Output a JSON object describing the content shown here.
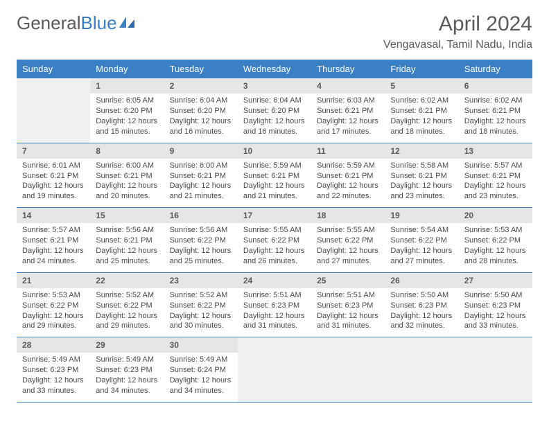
{
  "brand": {
    "part1": "General",
    "part2": "Blue"
  },
  "title": "April 2024",
  "location": "Vengavasal, Tamil Nadu, India",
  "colors": {
    "header_bg": "#3b7fc4",
    "header_fg": "#ffffff",
    "daynum_bg": "#e6e6e6",
    "text": "#4a4a4a",
    "border": "#3b7fc4"
  },
  "day_headers": [
    "Sunday",
    "Monday",
    "Tuesday",
    "Wednesday",
    "Thursday",
    "Friday",
    "Saturday"
  ],
  "weeks": [
    {
      "nums": [
        "",
        "1",
        "2",
        "3",
        "4",
        "5",
        "6"
      ],
      "cells": [
        null,
        {
          "sunrise": "Sunrise: 6:05 AM",
          "sunset": "Sunset: 6:20 PM",
          "day1": "Daylight: 12 hours",
          "day2": "and 15 minutes."
        },
        {
          "sunrise": "Sunrise: 6:04 AM",
          "sunset": "Sunset: 6:20 PM",
          "day1": "Daylight: 12 hours",
          "day2": "and 16 minutes."
        },
        {
          "sunrise": "Sunrise: 6:04 AM",
          "sunset": "Sunset: 6:20 PM",
          "day1": "Daylight: 12 hours",
          "day2": "and 16 minutes."
        },
        {
          "sunrise": "Sunrise: 6:03 AM",
          "sunset": "Sunset: 6:21 PM",
          "day1": "Daylight: 12 hours",
          "day2": "and 17 minutes."
        },
        {
          "sunrise": "Sunrise: 6:02 AM",
          "sunset": "Sunset: 6:21 PM",
          "day1": "Daylight: 12 hours",
          "day2": "and 18 minutes."
        },
        {
          "sunrise": "Sunrise: 6:02 AM",
          "sunset": "Sunset: 6:21 PM",
          "day1": "Daylight: 12 hours",
          "day2": "and 18 minutes."
        }
      ]
    },
    {
      "nums": [
        "7",
        "8",
        "9",
        "10",
        "11",
        "12",
        "13"
      ],
      "cells": [
        {
          "sunrise": "Sunrise: 6:01 AM",
          "sunset": "Sunset: 6:21 PM",
          "day1": "Daylight: 12 hours",
          "day2": "and 19 minutes."
        },
        {
          "sunrise": "Sunrise: 6:00 AM",
          "sunset": "Sunset: 6:21 PM",
          "day1": "Daylight: 12 hours",
          "day2": "and 20 minutes."
        },
        {
          "sunrise": "Sunrise: 6:00 AM",
          "sunset": "Sunset: 6:21 PM",
          "day1": "Daylight: 12 hours",
          "day2": "and 21 minutes."
        },
        {
          "sunrise": "Sunrise: 5:59 AM",
          "sunset": "Sunset: 6:21 PM",
          "day1": "Daylight: 12 hours",
          "day2": "and 21 minutes."
        },
        {
          "sunrise": "Sunrise: 5:59 AM",
          "sunset": "Sunset: 6:21 PM",
          "day1": "Daylight: 12 hours",
          "day2": "and 22 minutes."
        },
        {
          "sunrise": "Sunrise: 5:58 AM",
          "sunset": "Sunset: 6:21 PM",
          "day1": "Daylight: 12 hours",
          "day2": "and 23 minutes."
        },
        {
          "sunrise": "Sunrise: 5:57 AM",
          "sunset": "Sunset: 6:21 PM",
          "day1": "Daylight: 12 hours",
          "day2": "and 23 minutes."
        }
      ]
    },
    {
      "nums": [
        "14",
        "15",
        "16",
        "17",
        "18",
        "19",
        "20"
      ],
      "cells": [
        {
          "sunrise": "Sunrise: 5:57 AM",
          "sunset": "Sunset: 6:21 PM",
          "day1": "Daylight: 12 hours",
          "day2": "and 24 minutes."
        },
        {
          "sunrise": "Sunrise: 5:56 AM",
          "sunset": "Sunset: 6:21 PM",
          "day1": "Daylight: 12 hours",
          "day2": "and 25 minutes."
        },
        {
          "sunrise": "Sunrise: 5:56 AM",
          "sunset": "Sunset: 6:22 PM",
          "day1": "Daylight: 12 hours",
          "day2": "and 25 minutes."
        },
        {
          "sunrise": "Sunrise: 5:55 AM",
          "sunset": "Sunset: 6:22 PM",
          "day1": "Daylight: 12 hours",
          "day2": "and 26 minutes."
        },
        {
          "sunrise": "Sunrise: 5:55 AM",
          "sunset": "Sunset: 6:22 PM",
          "day1": "Daylight: 12 hours",
          "day2": "and 27 minutes."
        },
        {
          "sunrise": "Sunrise: 5:54 AM",
          "sunset": "Sunset: 6:22 PM",
          "day1": "Daylight: 12 hours",
          "day2": "and 27 minutes."
        },
        {
          "sunrise": "Sunrise: 5:53 AM",
          "sunset": "Sunset: 6:22 PM",
          "day1": "Daylight: 12 hours",
          "day2": "and 28 minutes."
        }
      ]
    },
    {
      "nums": [
        "21",
        "22",
        "23",
        "24",
        "25",
        "26",
        "27"
      ],
      "cells": [
        {
          "sunrise": "Sunrise: 5:53 AM",
          "sunset": "Sunset: 6:22 PM",
          "day1": "Daylight: 12 hours",
          "day2": "and 29 minutes."
        },
        {
          "sunrise": "Sunrise: 5:52 AM",
          "sunset": "Sunset: 6:22 PM",
          "day1": "Daylight: 12 hours",
          "day2": "and 29 minutes."
        },
        {
          "sunrise": "Sunrise: 5:52 AM",
          "sunset": "Sunset: 6:22 PM",
          "day1": "Daylight: 12 hours",
          "day2": "and 30 minutes."
        },
        {
          "sunrise": "Sunrise: 5:51 AM",
          "sunset": "Sunset: 6:23 PM",
          "day1": "Daylight: 12 hours",
          "day2": "and 31 minutes."
        },
        {
          "sunrise": "Sunrise: 5:51 AM",
          "sunset": "Sunset: 6:23 PM",
          "day1": "Daylight: 12 hours",
          "day2": "and 31 minutes."
        },
        {
          "sunrise": "Sunrise: 5:50 AM",
          "sunset": "Sunset: 6:23 PM",
          "day1": "Daylight: 12 hours",
          "day2": "and 32 minutes."
        },
        {
          "sunrise": "Sunrise: 5:50 AM",
          "sunset": "Sunset: 6:23 PM",
          "day1": "Daylight: 12 hours",
          "day2": "and 33 minutes."
        }
      ]
    },
    {
      "nums": [
        "28",
        "29",
        "30",
        "",
        "",
        "",
        ""
      ],
      "cells": [
        {
          "sunrise": "Sunrise: 5:49 AM",
          "sunset": "Sunset: 6:23 PM",
          "day1": "Daylight: 12 hours",
          "day2": "and 33 minutes."
        },
        {
          "sunrise": "Sunrise: 5:49 AM",
          "sunset": "Sunset: 6:23 PM",
          "day1": "Daylight: 12 hours",
          "day2": "and 34 minutes."
        },
        {
          "sunrise": "Sunrise: 5:49 AM",
          "sunset": "Sunset: 6:24 PM",
          "day1": "Daylight: 12 hours",
          "day2": "and 34 minutes."
        },
        null,
        null,
        null,
        null
      ]
    }
  ]
}
